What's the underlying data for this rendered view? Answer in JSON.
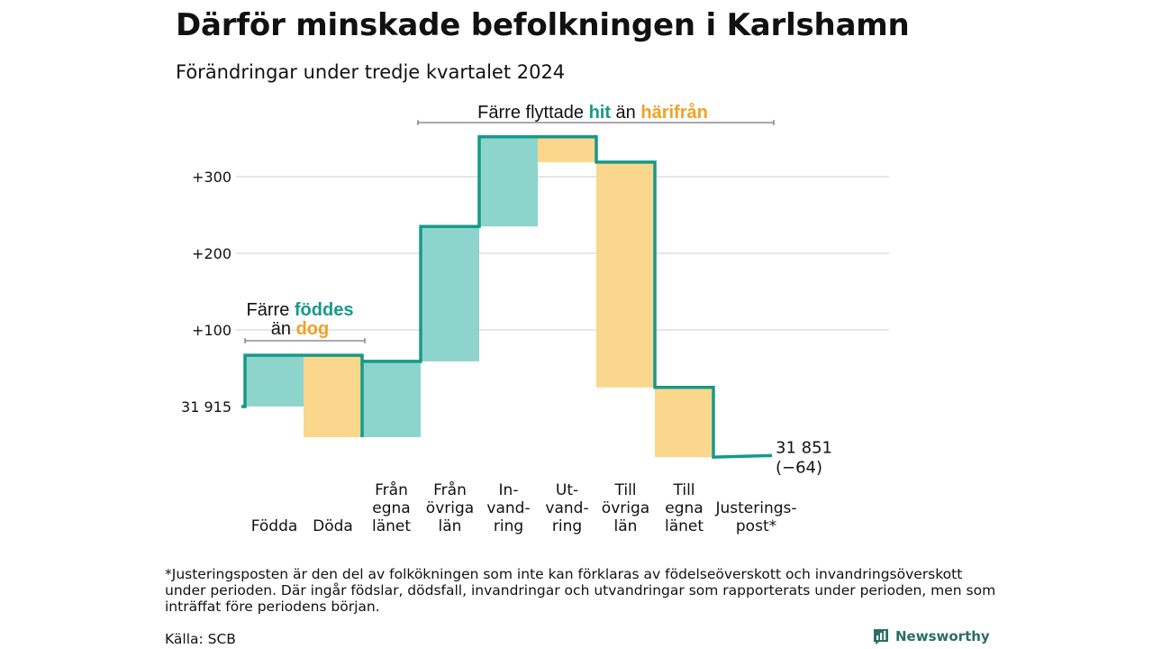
{
  "title": "Därför minskade befolkningen i Karlshamn",
  "subtitle": "Förändringar under tredje kvartalet 2024",
  "footnote": "*Justeringsposten är den del av folkökningen som inte kan förklaras av födelseöverskott och invandringsöverskott under perioden. Där ingår födslar, dödsfall, invandringar och utvandringar som rapporterats under perioden, men som inträffat före periodens början.",
  "source": "Källa: SCB",
  "logo_text": "Newsworthy",
  "colors": {
    "in": "#8dd5cc",
    "out": "#fad78c",
    "line": "#17998a",
    "hit": "#17998a",
    "harifran": "#f2a024",
    "grid": "#dddddd"
  },
  "chart_data": {
    "type": "waterfall",
    "start_value": 31915,
    "start_label": "31 915",
    "end_value": 31851,
    "end_label": "31 851",
    "end_change_label": "(−64)",
    "y_ticks": [
      {
        "value": 100,
        "label": "+100"
      },
      {
        "value": 200,
        "label": "+200"
      },
      {
        "value": 300,
        "label": "+300"
      }
    ],
    "steps": [
      {
        "label": [
          "Födda"
        ],
        "change": 67,
        "kind": "in"
      },
      {
        "label": [
          "Döda"
        ],
        "change": -107,
        "kind": "out"
      },
      {
        "label": [
          "Från",
          "egna",
          "länet"
        ],
        "change": 99,
        "kind": "in"
      },
      {
        "label": [
          "Från",
          "övriga",
          "län"
        ],
        "change": 176,
        "kind": "in"
      },
      {
        "label": [
          "In-",
          "vand-",
          "ring"
        ],
        "change": 117,
        "kind": "in"
      },
      {
        "label": [
          "Ut-",
          "vand-",
          "ring"
        ],
        "change": -33,
        "kind": "out"
      },
      {
        "label": [
          "Till",
          "övriga",
          "län"
        ],
        "change": -294,
        "kind": "out"
      },
      {
        "label": [
          "Till",
          "egna",
          "länet"
        ],
        "change": -91,
        "kind": "out"
      },
      {
        "label": [
          "Justerings-",
          "post*"
        ],
        "change": 2,
        "kind": "adjust"
      }
    ],
    "annotations": [
      {
        "text_parts": [
          "Färre flyttade ",
          "hit",
          " än ",
          "härifrån"
        ]
      },
      {
        "text_parts": [
          "Färre ",
          "föddes",
          "än ",
          "dog"
        ]
      }
    ]
  }
}
